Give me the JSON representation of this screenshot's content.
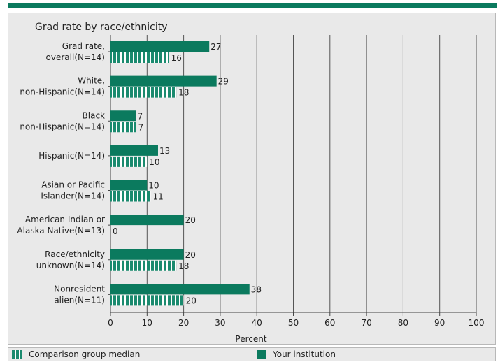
{
  "chart_data": {
    "type": "bar",
    "orientation": "horizontal",
    "title": "Grad rate by race/ethnicity",
    "xlabel": "Percent",
    "xlim": [
      0,
      100
    ],
    "xticks": [
      0,
      10,
      20,
      30,
      40,
      50,
      60,
      70,
      80,
      90,
      100
    ],
    "grid": true,
    "legend_placement": "bottom",
    "categories": [
      [
        "Grad rate,",
        "overall(N=14)"
      ],
      [
        "White,",
        "non-Hispanic(N=14)"
      ],
      [
        "Black",
        "non-Hispanic(N=14)"
      ],
      [
        "Hispanic(N=14)"
      ],
      [
        "Asian or Pacific",
        "Islander(N=14)"
      ],
      [
        "American Indian or",
        "Alaska Native(N=13)"
      ],
      [
        "Race/ethnicity",
        "unknown(N=14)"
      ],
      [
        "Nonresident",
        "alien(N=11)"
      ]
    ],
    "series": [
      {
        "name": "Your institution",
        "style": "solid",
        "color": "#0b7a5e",
        "values": [
          27,
          29,
          7,
          13,
          10,
          20,
          20,
          38
        ]
      },
      {
        "name": "Comparison group median",
        "style": "striped",
        "color": "#1a8a6e",
        "values": [
          16,
          18,
          7,
          10,
          11,
          0,
          18,
          20
        ]
      }
    ]
  },
  "legend": {
    "comparison_label": "Comparison group median",
    "institution_label": "Your institution"
  },
  "colors": {
    "brand": "#0b7a5e",
    "stripe": "#1a8a6e",
    "background": "#e9e9e9",
    "grid": "#555555"
  }
}
